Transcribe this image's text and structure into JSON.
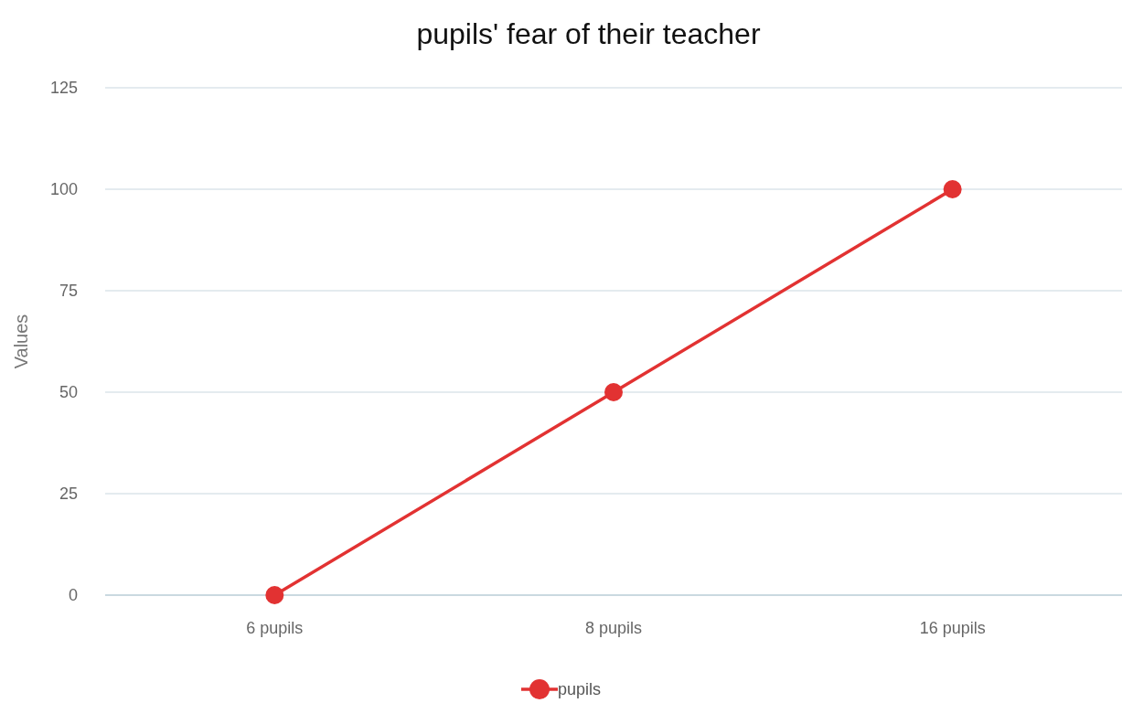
{
  "chart_data": {
    "type": "line",
    "title": "pupils' fear of their teacher",
    "ylabel": "Values",
    "categories": [
      "6 pupils",
      "8 pupils",
      "16 pupils"
    ],
    "series": [
      {
        "name": "pupils",
        "color": "#e23232",
        "values": [
          0,
          50,
          100
        ]
      }
    ],
    "ylim": [
      0,
      125
    ],
    "yticks": [
      0,
      25,
      50,
      75,
      100,
      125
    ],
    "grid": "y",
    "legend": "bottom",
    "marker": "circle",
    "line_style": "solid"
  }
}
